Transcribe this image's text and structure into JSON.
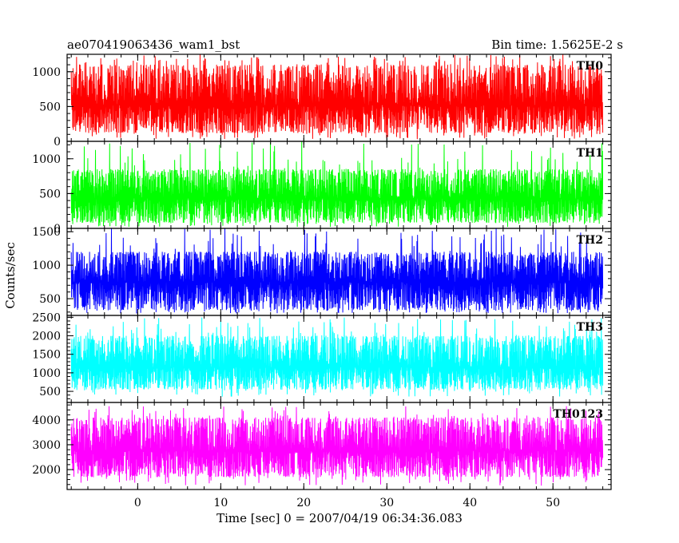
{
  "header": {
    "title": "ae070419063436_wam1_bst",
    "bin_time": "Bin time: 1.5625E-2 s"
  },
  "chart_data": {
    "type": "line",
    "xlabel": "Time [sec] 0 = 2007/04/19 06:34:36.083",
    "ylabel": "Counts/sec",
    "xlim": [
      -8.5,
      57
    ],
    "x_ticks": [
      0,
      10,
      20,
      30,
      40,
      50
    ],
    "x_data_range": [
      -8,
      56
    ],
    "panels": [
      {
        "name": "TH0",
        "color": "#ff0000",
        "ylim": [
          0,
          1250
        ],
        "yticks": [
          0,
          500,
          1000
        ],
        "band_mean": 520,
        "band_low": 120,
        "band_high": 1100,
        "spike_max": 1250,
        "dip_min": 30
      },
      {
        "name": "TH1",
        "color": "#00ff00",
        "ylim": [
          0,
          1250
        ],
        "yticks": [
          0,
          500,
          1000
        ],
        "band_mean": 430,
        "band_low": 80,
        "band_high": 850,
        "spike_max": 1250,
        "dip_min": 20
      },
      {
        "name": "TH2",
        "color": "#0000ff",
        "ylim": [
          250,
          1550
        ],
        "yticks": [
          500,
          1000,
          1500
        ],
        "band_mean": 750,
        "band_low": 330,
        "band_high": 1200,
        "spike_max": 1550,
        "dip_min": 280
      },
      {
        "name": "TH3",
        "color": "#00ffff",
        "ylim": [
          200,
          2550
        ],
        "yticks": [
          500,
          1000,
          1500,
          2000,
          2500
        ],
        "band_mean": 1150,
        "band_low": 550,
        "band_high": 2000,
        "spike_max": 2500,
        "dip_min": 350
      },
      {
        "name": "TH0123",
        "color": "#ff00ff",
        "ylim": [
          1200,
          4700
        ],
        "yticks": [
          2000,
          3000,
          4000
        ],
        "band_mean": 2750,
        "band_low": 1700,
        "band_high": 4100,
        "spike_max": 4550,
        "dip_min": 1350
      }
    ]
  }
}
